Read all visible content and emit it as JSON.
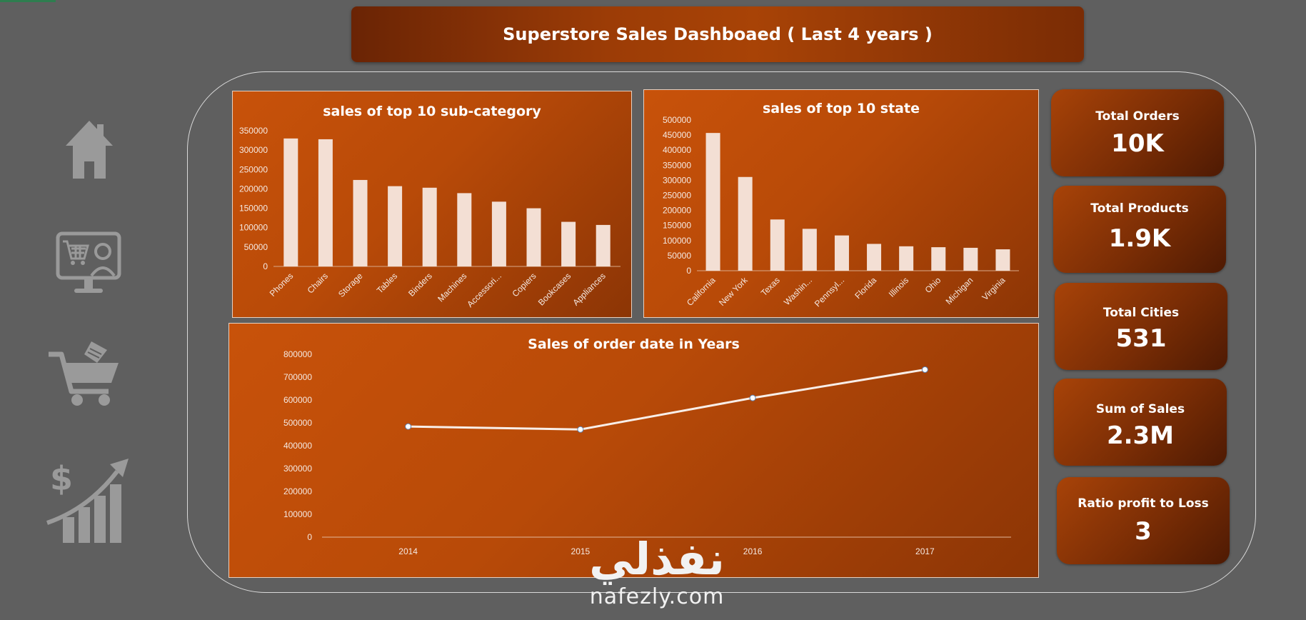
{
  "header": {
    "title": "Superstore Sales Dashboaed ( Last 4 years )"
  },
  "nav": {
    "icons": [
      "home-icon",
      "online-shopping-icon",
      "shopping-cart-icon",
      "sales-growth-icon"
    ]
  },
  "kpis": [
    {
      "label": "Total Orders",
      "value": "10K"
    },
    {
      "label": "Total Products",
      "value": "1.9K"
    },
    {
      "label": "Total Cities",
      "value": "531"
    },
    {
      "label": "Sum of Sales",
      "value": "2.3M"
    },
    {
      "label": "Ratio profit to Loss",
      "value": "3"
    }
  ],
  "watermark": {
    "arabic": "نفذلي",
    "latin": "nafezly.com"
  },
  "colors": {
    "background": "#5f5f5f",
    "panel": "#c8520a",
    "kpi": "#7a2d05",
    "bars": "#f3dfd4"
  },
  "chart_data": [
    {
      "type": "bar",
      "title": "sales of top 10 sub-category",
      "categories": [
        "Phones",
        "Chairs",
        "Storage",
        "Tables",
        "Binders",
        "Machines",
        "Accessori...",
        "Copiers",
        "Bookcases",
        "Appliances"
      ],
      "values": [
        330000,
        328000,
        223000,
        207000,
        203000,
        189000,
        167000,
        150000,
        115000,
        107000
      ],
      "ylim": [
        0,
        350000
      ],
      "yticks": [
        "0",
        "50000",
        "100000",
        "150000",
        "200000",
        "250000",
        "300000",
        "350000"
      ],
      "grid": false
    },
    {
      "type": "bar",
      "title": "sales of top 10 state",
      "categories": [
        "California",
        "New York",
        "Texas",
        "Washin...",
        "Pennsyl...",
        "Florida",
        "Illinois",
        "Ohio",
        "Michigan",
        "Virginia"
      ],
      "values": [
        457000,
        311000,
        170000,
        139000,
        117000,
        89000,
        81000,
        78000,
        76000,
        71000
      ],
      "ylim": [
        0,
        500000
      ],
      "yticks": [
        "0",
        "50000",
        "100000",
        "150000",
        "200000",
        "250000",
        "300000",
        "350000",
        "400000",
        "450000",
        "500000"
      ],
      "grid": false
    },
    {
      "type": "line",
      "title": "Sales of order date in Years",
      "categories": [
        "2014",
        "2015",
        "2016",
        "2017"
      ],
      "values": [
        484000,
        471000,
        609000,
        733000
      ],
      "ylim": [
        0,
        800000
      ],
      "yticks": [
        "0",
        "100000",
        "200000",
        "300000",
        "400000",
        "500000",
        "600000",
        "700000",
        "800000"
      ],
      "grid": false
    }
  ]
}
